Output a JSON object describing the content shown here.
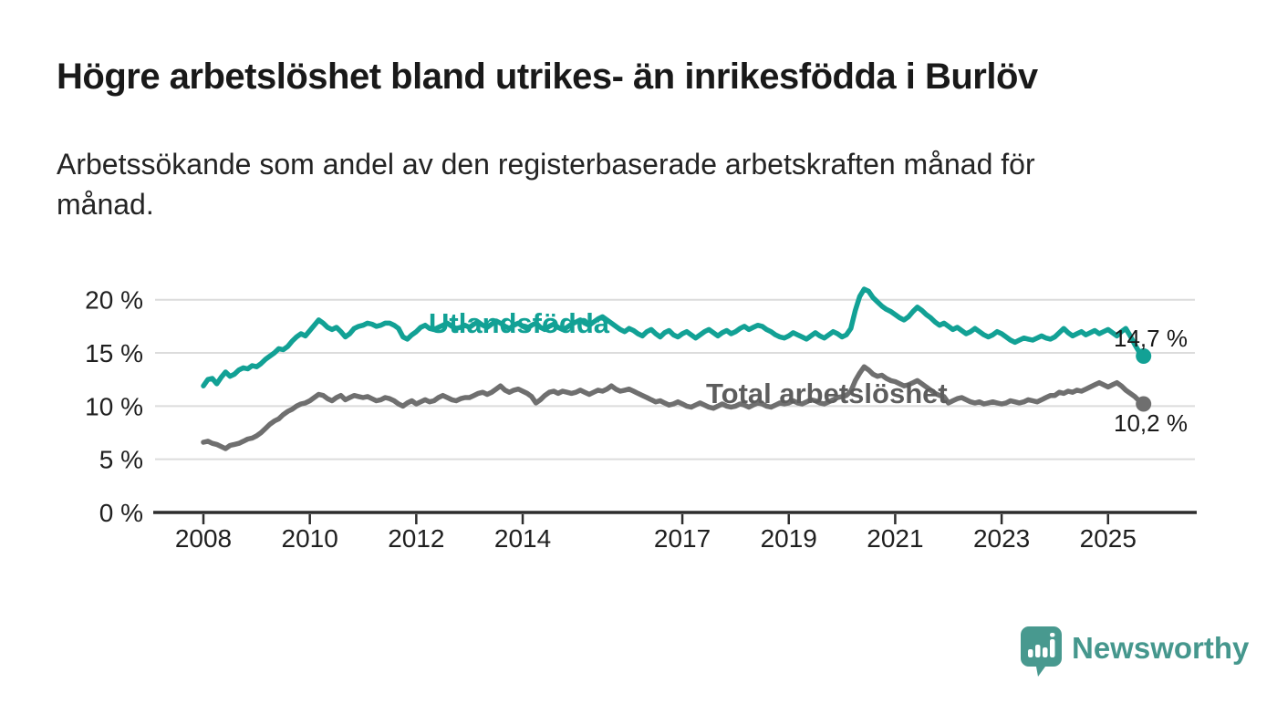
{
  "title": "Högre arbetslöshet bland utrikes- än inrikesfödda i Burlöv",
  "subtitle": "Arbetssökande som andel av den registerbaserade arbetskraften månad för månad.",
  "branding": {
    "logo_text": "Newsworthy",
    "logo_icon": "bar-chart-speech-bubble-icon",
    "logo_color": "#45978d"
  },
  "colors": {
    "foreign_born_line": "#12a195",
    "total_line": "#6f6f6f",
    "gridline": "#dcdcdc",
    "axis": "#2d2d2d",
    "tick_label": "#1f1f1f",
    "end_label": "#191919"
  },
  "chart_data": {
    "type": "line",
    "title": "Högre arbetslöshet bland utrikes- än inrikesfödda i Burlöv",
    "subtitle": "Arbetssökande som andel av den registerbaserade arbetskraften månad för månad.",
    "x_unit": "month",
    "x_start_year": 2008,
    "points_per_year": 12,
    "x_last_point": "2025-09",
    "x_ticks": [
      2008,
      2010,
      2012,
      2014,
      2017,
      2019,
      2021,
      2023,
      2025
    ],
    "y_ticks": [
      0,
      5,
      10,
      15,
      20
    ],
    "y_tick_suffix": " %",
    "ylim": [
      0,
      21.5
    ],
    "xlim": [
      2007.1,
      2026.6
    ],
    "grid": "horizontal",
    "legend_position": "inline-labels",
    "series": [
      {
        "name": "Utlandsfödda",
        "color": "#12a195",
        "end_label": "14,7 %",
        "end_value": 14.7,
        "values": [
          11.9,
          12.5,
          12.6,
          12.1,
          12.7,
          13.2,
          12.8,
          13.0,
          13.4,
          13.6,
          13.5,
          13.8,
          13.7,
          14.0,
          14.4,
          14.7,
          15.0,
          15.4,
          15.3,
          15.6,
          16.1,
          16.5,
          16.8,
          16.6,
          17.1,
          17.6,
          18.1,
          17.8,
          17.4,
          17.2,
          17.4,
          17.0,
          16.5,
          16.8,
          17.3,
          17.5,
          17.6,
          17.8,
          17.7,
          17.5,
          17.6,
          17.8,
          17.8,
          17.6,
          17.3,
          16.5,
          16.3,
          16.7,
          17.0,
          17.4,
          17.6,
          17.3,
          17.2,
          17.4,
          17.6,
          17.8,
          17.5,
          17.3,
          17.4,
          17.6,
          17.4,
          17.7,
          17.9,
          17.6,
          17.4,
          17.7,
          18.0,
          17.8,
          17.5,
          17.3,
          17.6,
          17.8,
          17.5,
          17.3,
          17.6,
          17.8,
          17.4,
          17.2,
          17.5,
          17.7,
          17.4,
          17.2,
          17.4,
          17.7,
          17.9,
          18.1,
          17.8,
          17.6,
          17.9,
          18.2,
          18.4,
          18.1,
          17.8,
          17.5,
          17.2,
          17.0,
          17.3,
          17.1,
          16.8,
          16.6,
          17.0,
          17.2,
          16.8,
          16.5,
          16.9,
          17.1,
          16.7,
          16.5,
          16.8,
          17.0,
          16.7,
          16.4,
          16.7,
          17.0,
          17.2,
          16.9,
          16.6,
          16.9,
          17.1,
          16.8,
          17.0,
          17.3,
          17.5,
          17.2,
          17.4,
          17.6,
          17.5,
          17.2,
          17.0,
          16.7,
          16.5,
          16.4,
          16.6,
          16.9,
          16.7,
          16.5,
          16.3,
          16.6,
          16.9,
          16.6,
          16.4,
          16.7,
          17.0,
          16.8,
          16.5,
          16.7,
          17.3,
          19.0,
          20.3,
          21.0,
          20.8,
          20.2,
          19.8,
          19.4,
          19.1,
          18.9,
          18.6,
          18.3,
          18.1,
          18.4,
          18.9,
          19.3,
          19.0,
          18.6,
          18.3,
          17.9,
          17.6,
          17.8,
          17.5,
          17.2,
          17.4,
          17.1,
          16.8,
          17.0,
          17.3,
          17.0,
          16.7,
          16.5,
          16.7,
          17.0,
          16.8,
          16.5,
          16.2,
          16.0,
          16.2,
          16.4,
          16.3,
          16.2,
          16.4,
          16.6,
          16.4,
          16.3,
          16.5,
          16.9,
          17.3,
          16.9,
          16.6,
          16.8,
          17.0,
          16.7,
          16.9,
          17.1,
          16.8,
          17.0,
          17.2,
          16.9,
          16.6,
          17.0,
          17.3,
          16.6,
          15.8,
          15.1,
          14.7
        ]
      },
      {
        "name": "Total arbetslöshet",
        "color": "#6f6f6f",
        "end_label": "10,2 %",
        "end_value": 10.2,
        "values": [
          6.6,
          6.7,
          6.5,
          6.4,
          6.2,
          6.0,
          6.3,
          6.4,
          6.5,
          6.7,
          6.9,
          7.0,
          7.2,
          7.5,
          7.9,
          8.3,
          8.6,
          8.8,
          9.2,
          9.5,
          9.7,
          10.0,
          10.2,
          10.3,
          10.5,
          10.8,
          11.1,
          11.0,
          10.7,
          10.5,
          10.8,
          11.0,
          10.6,
          10.8,
          11.0,
          10.9,
          10.8,
          10.9,
          10.7,
          10.5,
          10.6,
          10.8,
          10.7,
          10.5,
          10.2,
          10.0,
          10.3,
          10.5,
          10.2,
          10.4,
          10.6,
          10.4,
          10.5,
          10.8,
          11.0,
          10.8,
          10.6,
          10.5,
          10.7,
          10.8,
          10.8,
          11.0,
          11.2,
          11.3,
          11.1,
          11.3,
          11.6,
          11.9,
          11.5,
          11.3,
          11.5,
          11.6,
          11.4,
          11.2,
          10.9,
          10.3,
          10.6,
          11.0,
          11.3,
          11.4,
          11.2,
          11.4,
          11.3,
          11.2,
          11.3,
          11.5,
          11.3,
          11.1,
          11.3,
          11.5,
          11.4,
          11.6,
          11.9,
          11.6,
          11.4,
          11.5,
          11.6,
          11.4,
          11.2,
          11.0,
          10.8,
          10.6,
          10.4,
          10.5,
          10.3,
          10.1,
          10.2,
          10.4,
          10.2,
          10.0,
          9.9,
          10.1,
          10.3,
          10.1,
          9.9,
          9.8,
          10.0,
          10.2,
          10.0,
          9.9,
          10.0,
          10.2,
          10.1,
          9.9,
          10.1,
          10.3,
          10.2,
          10.0,
          9.9,
          10.1,
          10.3,
          10.2,
          10.3,
          10.5,
          10.3,
          10.2,
          10.4,
          10.6,
          10.5,
          10.3,
          10.2,
          10.4,
          10.6,
          10.8,
          10.9,
          11.0,
          11.4,
          12.4,
          13.1,
          13.7,
          13.4,
          13.0,
          12.8,
          12.9,
          12.6,
          12.4,
          12.3,
          12.1,
          11.9,
          12.0,
          12.2,
          12.4,
          12.1,
          11.8,
          11.5,
          11.2,
          11.0,
          10.9,
          10.3,
          10.5,
          10.7,
          10.8,
          10.6,
          10.4,
          10.3,
          10.4,
          10.2,
          10.3,
          10.4,
          10.3,
          10.2,
          10.3,
          10.5,
          10.4,
          10.3,
          10.4,
          10.6,
          10.5,
          10.4,
          10.6,
          10.8,
          11.0,
          11.0,
          11.3,
          11.2,
          11.4,
          11.3,
          11.5,
          11.4,
          11.6,
          11.8,
          12.0,
          12.2,
          12.0,
          11.8,
          12.0,
          12.2,
          11.9,
          11.5,
          11.2,
          10.9,
          10.5,
          10.2
        ]
      }
    ]
  }
}
